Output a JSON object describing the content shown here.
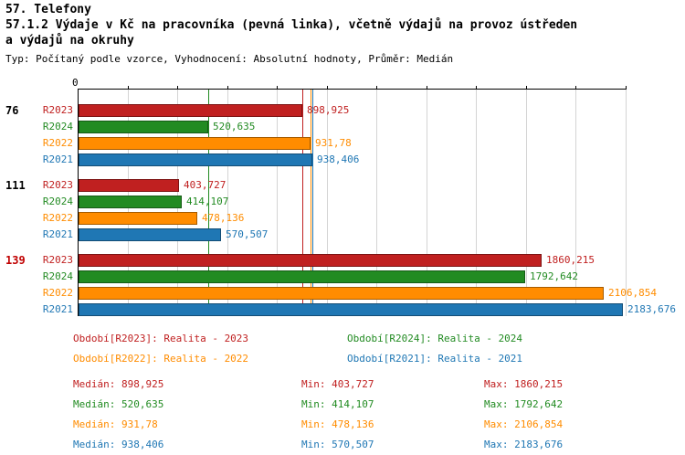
{
  "header": {
    "title": "57. Telefony",
    "subtitle_line1": "57.1.2 Výdaje v Kč na pracovníka (pevná linka), včetně výdajů na provoz ústředen",
    "subtitle_line2": "a výdajů na okruhy",
    "meta": "Typ: Počítaný podle vzorce, Vyhodnocení: Absolutní hodnoty, Průměr: Medián"
  },
  "chart_data": {
    "type": "bar",
    "orientation": "horizontal",
    "title": "57.1.2 Výdaje v Kč na pracovníka (pevná linka), včetně výdajů na provoz ústředen a výdajů na okruhy",
    "axis": {
      "min": 0,
      "max": 2200,
      "zero_label": "0",
      "gridline_step": 200,
      "grid": true
    },
    "series_colors": {
      "R2023": "#c02020",
      "R2024": "#228b22",
      "R2022": "#ff8c00",
      "R2021": "#1f77b4"
    },
    "groups": [
      {
        "label": "76",
        "label_color": "#000000",
        "bars": [
          {
            "series": "R2023",
            "value": 898.925,
            "display": "898,925"
          },
          {
            "series": "R2024",
            "value": 520.635,
            "display": "520,635"
          },
          {
            "series": "R2022",
            "value": 931.78,
            "display": "931,78"
          },
          {
            "series": "R2021",
            "value": 938.406,
            "display": "938,406"
          }
        ]
      },
      {
        "label": "111",
        "label_color": "#000000",
        "bars": [
          {
            "series": "R2023",
            "value": 403.727,
            "display": "403,727"
          },
          {
            "series": "R2024",
            "value": 414.107,
            "display": "414,107"
          },
          {
            "series": "R2022",
            "value": 478.136,
            "display": "478,136"
          },
          {
            "series": "R2021",
            "value": 570.507,
            "display": "570,507"
          }
        ]
      },
      {
        "label": "139",
        "label_color": "#c00000",
        "bars": [
          {
            "series": "R2023",
            "value": 1860.215,
            "display": "1860,215"
          },
          {
            "series": "R2024",
            "value": 1792.642,
            "display": "1792,642"
          },
          {
            "series": "R2022",
            "value": 2106.854,
            "display": "2106,854"
          },
          {
            "series": "R2021",
            "value": 2183.676,
            "display": "2183,676"
          }
        ]
      }
    ],
    "medians": [
      {
        "series": "R2023",
        "value": 898.925
      },
      {
        "series": "R2024",
        "value": 520.635
      },
      {
        "series": "R2022",
        "value": 931.78
      },
      {
        "series": "R2021",
        "value": 938.406
      }
    ]
  },
  "legend": [
    {
      "label": "Období[R2023]: Realita - 2023",
      "color": "#c02020"
    },
    {
      "label": "Období[R2024]: Realita - 2024",
      "color": "#228b22"
    },
    {
      "label": "Období[R2022]: Realita - 2022",
      "color": "#ff8c00"
    },
    {
      "label": "Období[R2021]: Realita - 2021",
      "color": "#1f77b4"
    }
  ],
  "stats": [
    {
      "color": "#c02020",
      "median": "Medián: 898,925",
      "min": "Min: 403,727",
      "max": "Max: 1860,215"
    },
    {
      "color": "#228b22",
      "median": "Medián: 520,635",
      "min": "Min: 414,107",
      "max": "Max: 1792,642"
    },
    {
      "color": "#ff8c00",
      "median": "Medián: 931,78",
      "min": "Min: 478,136",
      "max": "Max: 2106,854"
    },
    {
      "color": "#1f77b4",
      "median": "Medián: 938,406",
      "min": "Min: 570,507",
      "max": "Max: 2183,676"
    }
  ]
}
